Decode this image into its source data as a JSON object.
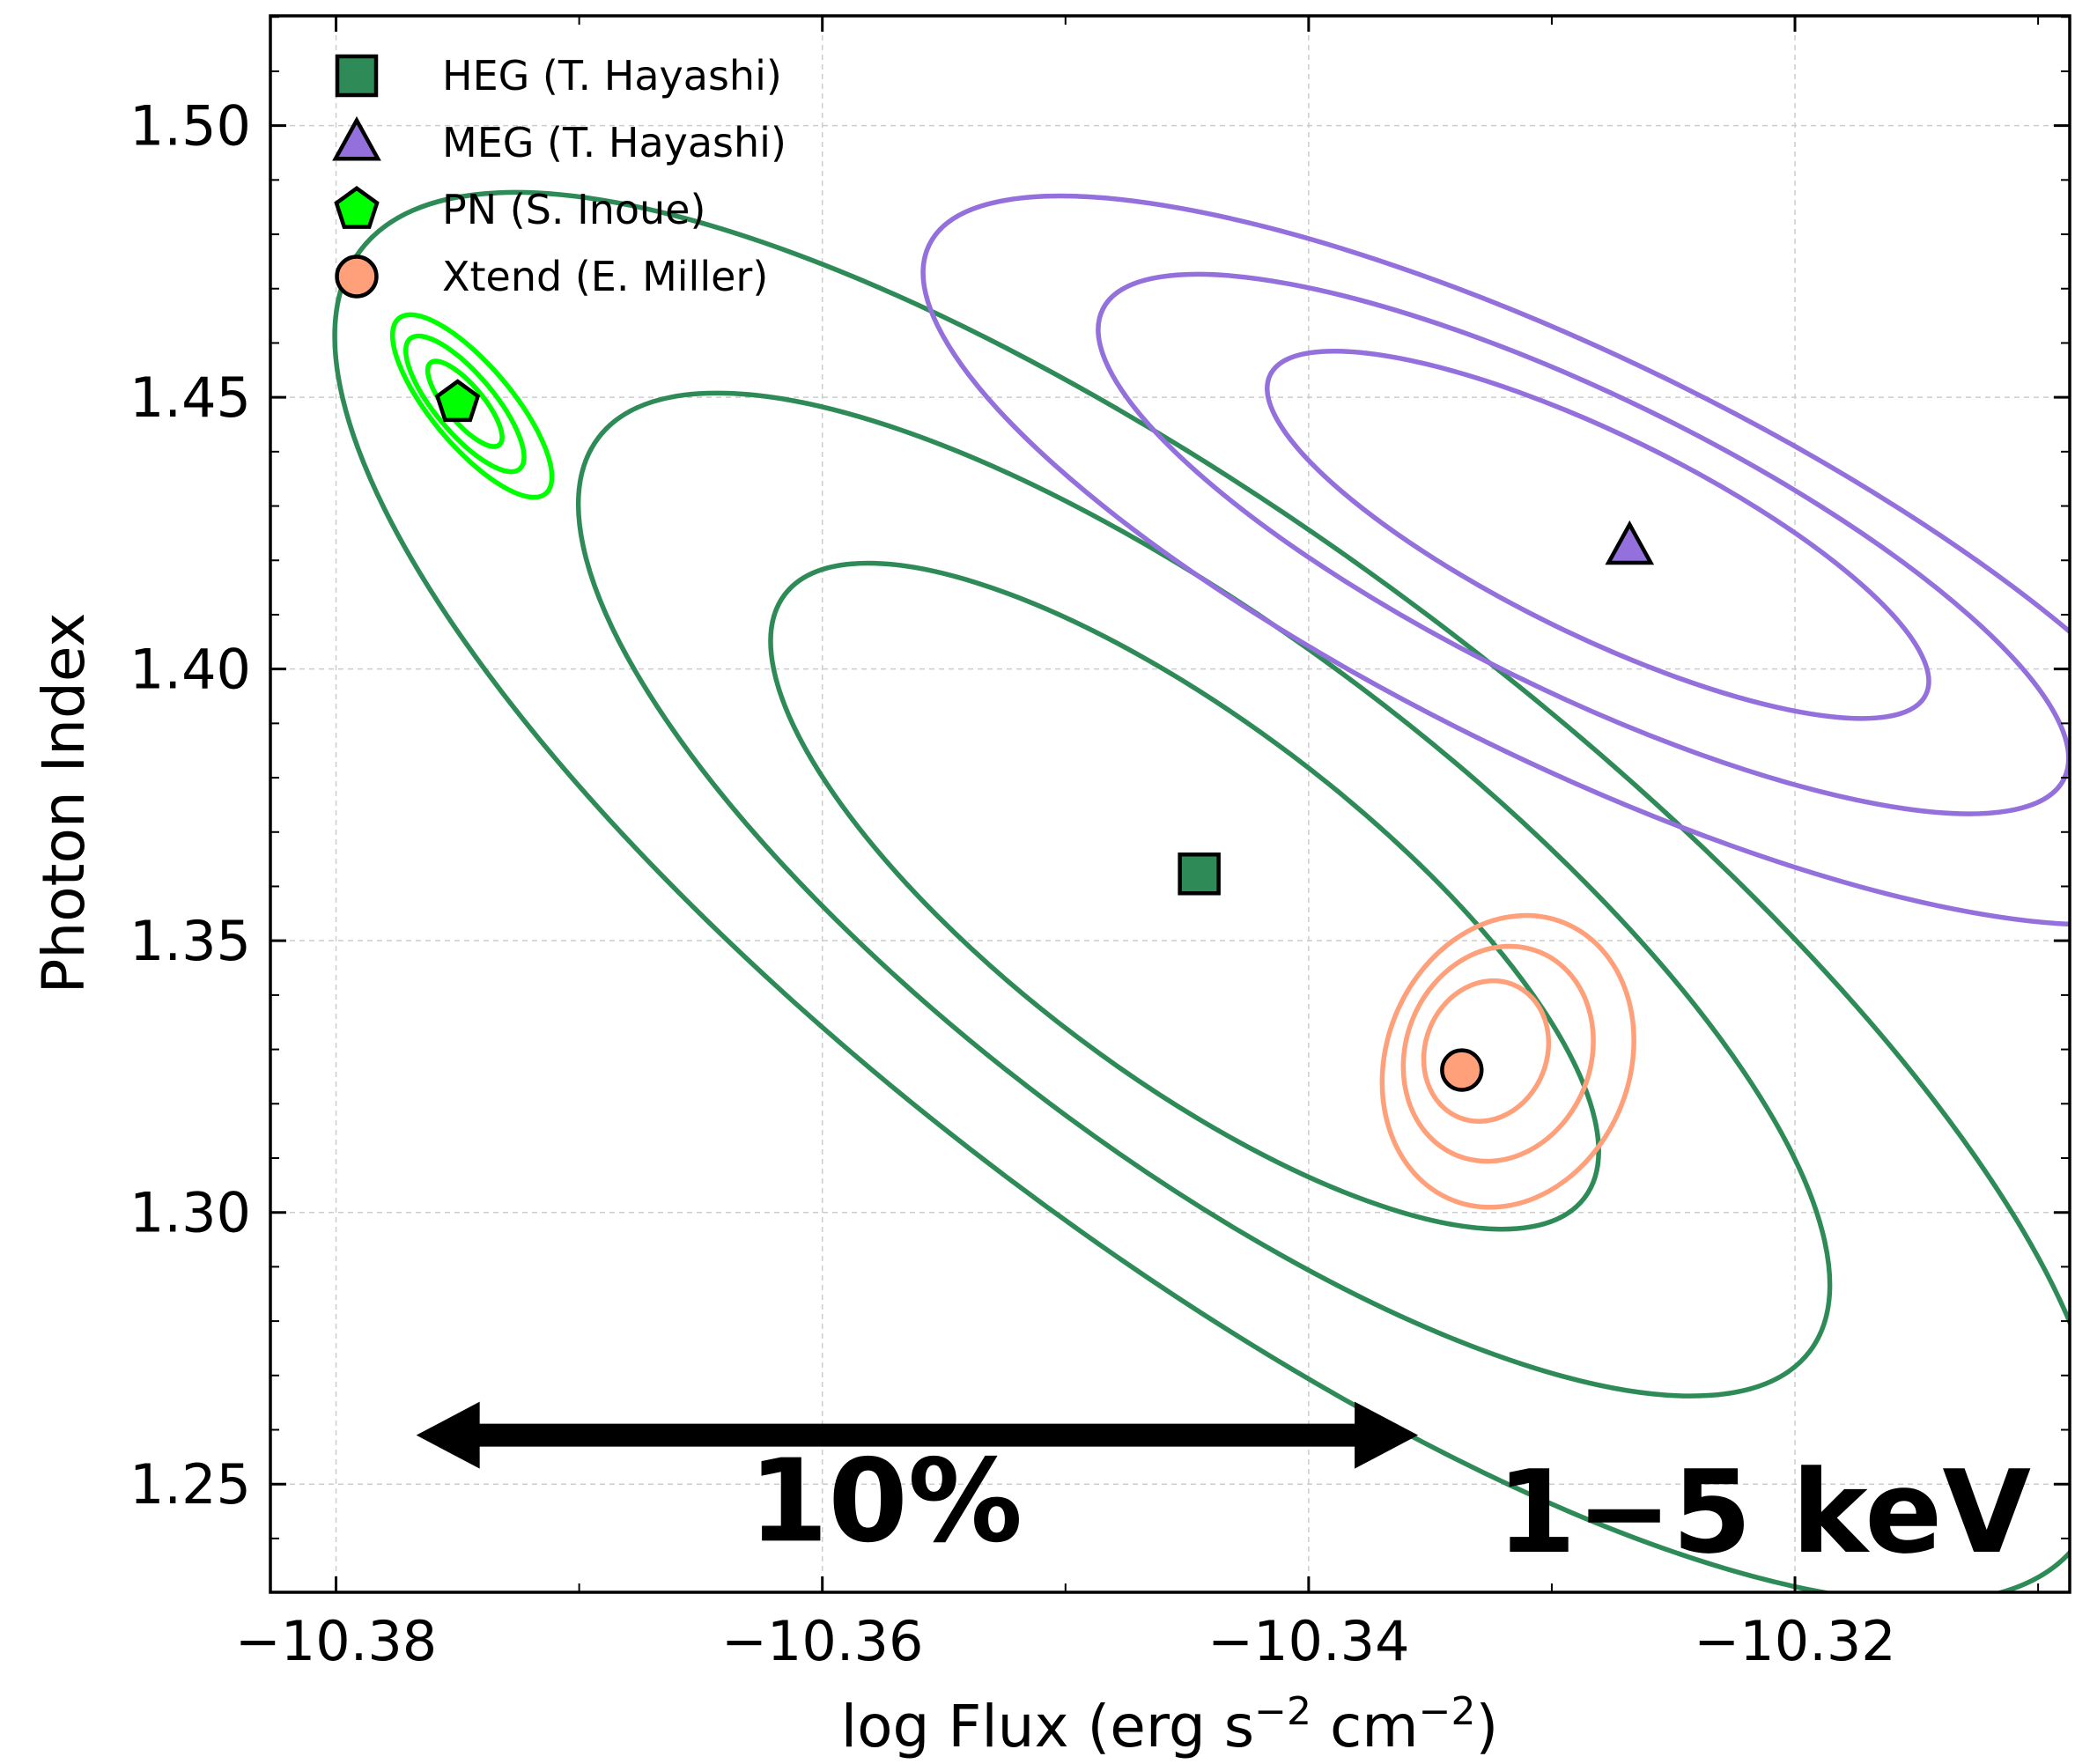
{
  "chart_data": {
    "type": "scatter",
    "title": "",
    "xlabel": "log Flux (erg s",
    "xlabel_sup1": "−2",
    "xlabel_mid": " cm",
    "xlabel_sup2": "−2",
    "xlabel_end": ")",
    "ylabel": "Photon Index",
    "xlim": [
      -10.3827,
      -10.3087
    ],
    "ylim": [
      1.2301,
      1.5202
    ],
    "xticks": [
      -10.38,
      -10.36,
      -10.34,
      -10.32
    ],
    "xtick_labels": [
      "−10.38",
      "−10.36",
      "−10.34",
      "−10.32"
    ],
    "yticks": [
      1.25,
      1.3,
      1.35,
      1.4,
      1.45,
      1.5
    ],
    "ytick_labels": [
      "1.25",
      "1.30",
      "1.35",
      "1.40",
      "1.45",
      "1.50"
    ],
    "grid": true,
    "legend_position": "top-left",
    "series": [
      {
        "name": "HEG (T. Hayashi)",
        "marker": "square",
        "color": "#2e8b57",
        "x": -10.3445,
        "y": 1.3623,
        "contours": [
          {
            "cx": -10.3451,
            "cy": 1.3582,
            "rx": 0.0206,
            "ry": 0.0326,
            "theta": 37
          },
          {
            "cx": -10.3443,
            "cy": 1.3585,
            "rx": 0.0312,
            "ry": 0.0478,
            "theta": 37
          },
          {
            "cx": -10.3437,
            "cy": 1.358,
            "rx": 0.0442,
            "ry": 0.0646,
            "theta": 37
          }
        ]
      },
      {
        "name": "MEG (T. Hayashi)",
        "marker": "triangle",
        "color": "#9370db",
        "x": -10.3268,
        "y": 1.4225,
        "contours": [
          {
            "cx": -10.3281,
            "cy": 1.4247,
            "rx": 0.015,
            "ry": 0.0185,
            "theta": 26
          },
          {
            "cx": -10.3287,
            "cy": 1.423,
            "rx": 0.022,
            "ry": 0.0273,
            "theta": 26
          },
          {
            "cx": -10.329,
            "cy": 1.42,
            "rx": 0.0296,
            "ry": 0.0373,
            "theta": 26
          }
        ]
      },
      {
        "name": "PN (S. Inoue)",
        "marker": "pentagon",
        "color": "#00ff00",
        "x": -10.375,
        "y": 1.449,
        "contours": [
          {
            "cx": -10.3747,
            "cy": 1.4488,
            "rx": 0.0022,
            "ry": 0.0034,
            "theta": 50
          },
          {
            "cx": -10.3747,
            "cy": 1.4488,
            "rx": 0.0035,
            "ry": 0.0054,
            "theta": 50
          },
          {
            "cx": -10.3744,
            "cy": 1.4484,
            "rx": 0.0047,
            "ry": 0.0074,
            "theta": 50
          }
        ]
      },
      {
        "name": "Xtend (E. Miller)",
        "marker": "circle",
        "color": "#ffa07a",
        "x": -10.3337,
        "y": 1.3262,
        "contours": [
          {
            "cx": -10.3327,
            "cy": 1.3297,
            "rx": 0.0025,
            "ry": 0.0132,
            "theta": 22
          },
          {
            "cx": -10.3322,
            "cy": 1.3292,
            "rx": 0.0038,
            "ry": 0.0202,
            "theta": 22
          },
          {
            "cx": -10.3318,
            "cy": 1.3278,
            "rx": 0.005,
            "ry": 0.0275,
            "theta": 22
          }
        ]
      }
    ],
    "annotations": {
      "arrow": {
        "x_start": -10.3767,
        "x_end": -10.3355,
        "y": 1.259
      },
      "arrow_label": "10%",
      "arrow_label_x": -10.3574,
      "arrow_label_y": 1.2396,
      "band_label": "1−5 keV"
    }
  }
}
